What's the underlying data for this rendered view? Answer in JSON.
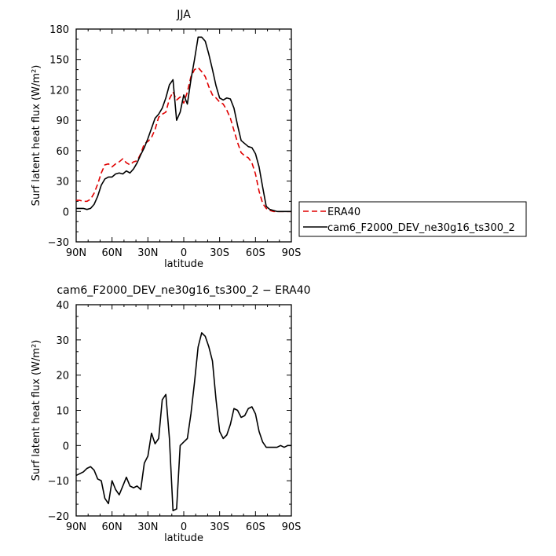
{
  "chart_data": [
    {
      "type": "line",
      "title": "JJA",
      "xlabel": "latitude",
      "ylabel": "Surf latent heat flux (W/m²)",
      "xlim": [
        -90,
        90
      ],
      "ylim": [
        -30,
        180
      ],
      "x_ticks": [
        -90,
        -60,
        -30,
        0,
        30,
        60,
        90
      ],
      "x_tick_labels": [
        "90N",
        "60N",
        "30N",
        "0",
        "30S",
        "60S",
        "90S"
      ],
      "y_ticks": [
        -30,
        0,
        30,
        60,
        90,
        120,
        150,
        180
      ],
      "y_tick_labels": [
        "−30",
        "0",
        "30",
        "60",
        "90",
        "120",
        "150",
        "180"
      ],
      "legend_position": "right",
      "series": [
        {
          "name": "ERA40",
          "color": "#e00000",
          "dash": true,
          "x": [
            -90,
            -87,
            -84,
            -81,
            -78,
            -75,
            -72,
            -69,
            -66,
            -63,
            -60,
            -57,
            -54,
            -51,
            -48,
            -45,
            -42,
            -39,
            -36,
            -33,
            -30,
            -27,
            -24,
            -21,
            -18,
            -15,
            -12,
            -9,
            -6,
            -3,
            0,
            3,
            6,
            9,
            12,
            15,
            18,
            21,
            24,
            27,
            30,
            33,
            36,
            39,
            42,
            45,
            48,
            51,
            54,
            57,
            60,
            63,
            66,
            69,
            72,
            75,
            78,
            81,
            84,
            87,
            90
          ],
          "y": [
            11,
            11,
            10,
            10,
            12,
            18,
            27,
            38,
            46,
            47,
            44,
            47,
            49,
            52,
            48,
            46,
            49,
            50,
            57,
            67,
            69,
            73,
            81,
            93,
            96,
            98,
            111,
            118,
            110,
            113,
            107,
            118,
            133,
            140,
            142,
            138,
            133,
            123,
            115,
            112,
            108,
            106,
            100,
            92,
            80,
            68,
            58,
            55,
            53,
            48,
            37,
            20,
            8,
            3,
            1,
            0,
            0,
            0,
            0,
            0,
            0
          ]
        },
        {
          "name": "cam6_F2000_DEV_ne30g16_ts300_2",
          "color": "#000000",
          "dash": false,
          "x": [
            -90,
            -87,
            -84,
            -81,
            -78,
            -75,
            -72,
            -69,
            -66,
            -63,
            -60,
            -57,
            -54,
            -51,
            -48,
            -45,
            -42,
            -39,
            -36,
            -33,
            -30,
            -27,
            -24,
            -21,
            -18,
            -15,
            -12,
            -9,
            -6,
            -3,
            0,
            3,
            6,
            9,
            12,
            15,
            18,
            21,
            24,
            27,
            30,
            33,
            36,
            39,
            42,
            45,
            48,
            51,
            54,
            57,
            60,
            63,
            66,
            69,
            72,
            75,
            78,
            81,
            84,
            87,
            90
          ],
          "y": [
            3,
            3,
            3,
            2,
            3,
            7,
            15,
            26,
            32,
            34,
            34,
            37,
            38,
            37,
            40,
            38,
            42,
            48,
            56,
            63,
            72,
            82,
            92,
            96,
            102,
            112,
            125,
            130,
            90,
            98,
            115,
            106,
            130,
            150,
            172,
            172,
            168,
            155,
            140,
            124,
            112,
            110,
            112,
            111,
            102,
            85,
            70,
            67,
            64,
            63,
            57,
            44,
            24,
            5,
            2,
            1,
            0,
            0,
            0,
            0,
            0
          ]
        }
      ]
    },
    {
      "type": "line",
      "title": "cam6_F2000_DEV_ne30g16_ts300_2 − ERA40",
      "xlabel": "latitude",
      "ylabel": "Surf latent heat flux (W/m²)",
      "xlim": [
        -90,
        90
      ],
      "ylim": [
        -20,
        40
      ],
      "x_ticks": [
        -90,
        -60,
        -30,
        0,
        30,
        60,
        90
      ],
      "x_tick_labels": [
        "90N",
        "60N",
        "30N",
        "0",
        "30S",
        "60S",
        "90S"
      ],
      "y_ticks": [
        -20,
        -10,
        0,
        10,
        20,
        30,
        40
      ],
      "y_tick_labels": [
        "−20",
        "−10",
        "0",
        "10",
        "20",
        "30",
        "40"
      ],
      "series": [
        {
          "color": "#000000",
          "dash": false,
          "x": [
            -90,
            -87,
            -84,
            -81,
            -78,
            -75,
            -72,
            -69,
            -66,
            -63,
            -60,
            -57,
            -54,
            -51,
            -48,
            -45,
            -42,
            -39,
            -36,
            -33,
            -30,
            -27,
            -24,
            -21,
            -18,
            -15,
            -12,
            -9,
            -6,
            -3,
            0,
            3,
            6,
            9,
            12,
            15,
            18,
            21,
            24,
            27,
            30,
            33,
            36,
            39,
            42,
            45,
            48,
            51,
            54,
            57,
            60,
            63,
            66,
            69,
            72,
            75,
            78,
            81,
            84,
            87,
            90
          ],
          "y": [
            -8.5,
            -8,
            -7.5,
            -6.5,
            -6,
            -7,
            -9.5,
            -10,
            -15,
            -16.5,
            -10,
            -12.5,
            -14,
            -11.5,
            -9,
            -11.5,
            -12,
            -11.5,
            -12.5,
            -5,
            -3,
            3.5,
            0.5,
            2,
            13,
            14.5,
            2,
            -18.5,
            -18,
            0,
            1,
            2,
            9,
            18,
            28,
            32,
            31,
            28,
            24,
            13,
            4,
            2,
            3,
            6,
            10.5,
            10,
            8,
            8.5,
            10.5,
            11,
            9,
            4,
            1,
            -0.5,
            -0.5,
            -0.5,
            -0.5,
            0,
            -0.5,
            0,
            0
          ]
        }
      ]
    }
  ]
}
